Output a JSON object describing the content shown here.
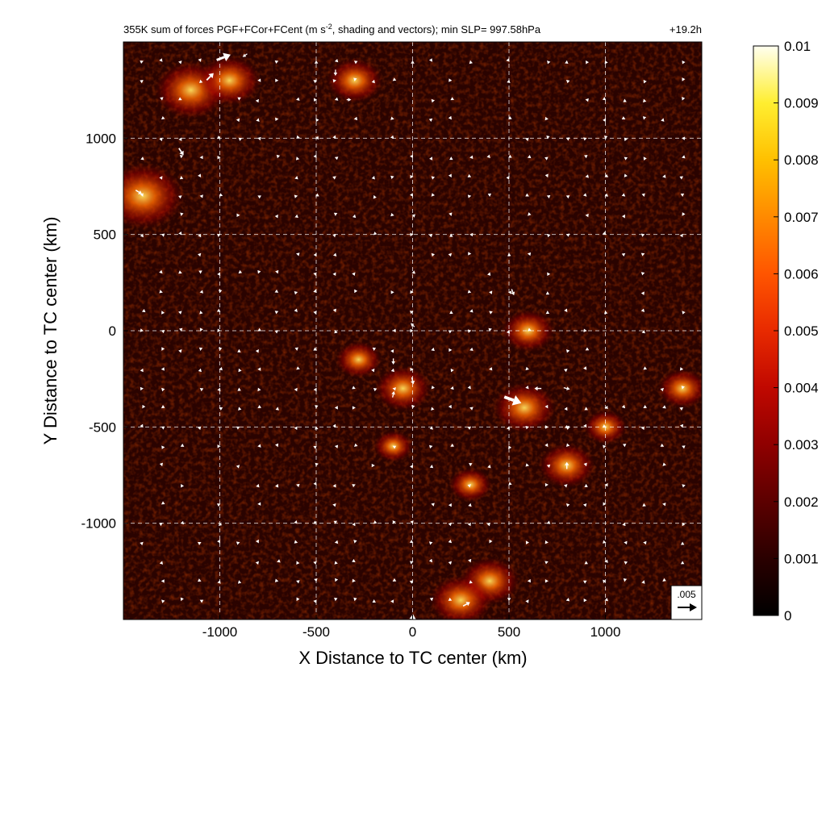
{
  "chart_data": {
    "type": "heatmap",
    "title": "355K sum of forces PGF+FCor+FCent (m s-2, shading and vectors); min SLP= 997.58hPa",
    "title_parts": {
      "prefix": "355K sum of forces PGF+FCor+FCent (m s",
      "superscript": "-2",
      "suffix": ", shading and vectors); min SLP= 997.58hPa"
    },
    "time_label": "+19.2h",
    "xlabel": "X Distance to TC center (km)",
    "ylabel": "Y Distance to TC center (km)",
    "xlim": [
      -1500,
      1500
    ],
    "ylim": [
      -1500,
      1500
    ],
    "x_ticks": [
      -1000,
      -500,
      0,
      500,
      1000
    ],
    "y_ticks": [
      1000,
      500,
      0,
      -500,
      -1000
    ],
    "x_tick_labels": [
      "-1000",
      "-500",
      "0",
      "500",
      "1000"
    ],
    "y_tick_labels": [
      "1000",
      "500",
      "0",
      "-500",
      "-1000"
    ],
    "grid": true,
    "colorbar": {
      "range": [
        0,
        0.01
      ],
      "tick_labels": [
        "0.01",
        "0.009",
        "0.008",
        "0.007",
        "0.006",
        "0.005",
        "0.004",
        "0.003",
        "0.002",
        "0.001",
        "0"
      ],
      "colors": [
        "#000000",
        "#2a0000",
        "#5c0000",
        "#8f0000",
        "#c00800",
        "#e82a00",
        "#ff5500",
        "#ff8a00",
        "#ffc000",
        "#ffee30",
        "#fffff0"
      ]
    },
    "reference_vector": {
      "label": ".005",
      "magnitude": 0.005
    },
    "hotspots": [
      {
        "x": -1150,
        "y": 1250,
        "v": 0.0075
      },
      {
        "x": -1400,
        "y": 700,
        "v": 0.009
      },
      {
        "x": -300,
        "y": 1300,
        "v": 0.005
      },
      {
        "x": -950,
        "y": 1300,
        "v": 0.006
      },
      {
        "x": -50,
        "y": -300,
        "v": 0.005
      },
      {
        "x": -280,
        "y": -150,
        "v": 0.0035
      },
      {
        "x": 580,
        "y": -400,
        "v": 0.006
      },
      {
        "x": 600,
        "y": 0,
        "v": 0.0045
      },
      {
        "x": 800,
        "y": -700,
        "v": 0.005
      },
      {
        "x": 400,
        "y": -1300,
        "v": 0.0055
      },
      {
        "x": 250,
        "y": -1400,
        "v": 0.006
      },
      {
        "x": 1400,
        "y": -300,
        "v": 0.004
      },
      {
        "x": -100,
        "y": -600,
        "v": 0.0025
      },
      {
        "x": 300,
        "y": -800,
        "v": 0.003
      },
      {
        "x": 1000,
        "y": -500,
        "v": 0.003
      }
    ],
    "large_vectors": [
      {
        "x": -980,
        "y": 1420,
        "u": 0.0036,
        "v": 0.0014
      },
      {
        "x": -1050,
        "y": 1320,
        "u": 0.0018,
        "v": 0.0018
      },
      {
        "x": -870,
        "y": 1430,
        "u": -0.0012,
        "v": -0.0008
      },
      {
        "x": -1200,
        "y": 930,
        "u": 0.0012,
        "v": -0.0018
      },
      {
        "x": -1420,
        "y": 720,
        "u": 0.0016,
        "v": -0.001
      },
      {
        "x": -400,
        "y": 1340,
        "u": 0.0,
        "v": -0.0016
      },
      {
        "x": -100,
        "y": -160,
        "u": 0.0,
        "v": -0.0016
      },
      {
        "x": 0,
        "y": -260,
        "u": 0.0004,
        "v": -0.0018
      },
      {
        "x": -100,
        "y": -330,
        "u": 0.0004,
        "v": 0.0016
      },
      {
        "x": 520,
        "y": -360,
        "u": 0.0044,
        "v": -0.0016
      },
      {
        "x": 650,
        "y": -300,
        "u": -0.0018,
        "v": 0.0
      },
      {
        "x": 800,
        "y": -700,
        "u": 0.0,
        "v": 0.0018
      },
      {
        "x": 800,
        "y": -300,
        "u": 0.0016,
        "v": -0.0004
      },
      {
        "x": 0,
        "y": -1500,
        "u": 0.0002,
        "v": 0.0028
      },
      {
        "x": 280,
        "y": -1420,
        "u": 0.0018,
        "v": 0.001
      },
      {
        "x": 520,
        "y": 200,
        "u": 0.0006,
        "v": -0.0016
      },
      {
        "x": 0,
        "y": 30,
        "u": -0.001,
        "v": 0.001
      },
      {
        "x": -330,
        "y": 1200,
        "u": 0.0012,
        "v": 0.0
      },
      {
        "x": 800,
        "y": -500,
        "u": -0.0012,
        "v": -0.0004
      }
    ]
  }
}
